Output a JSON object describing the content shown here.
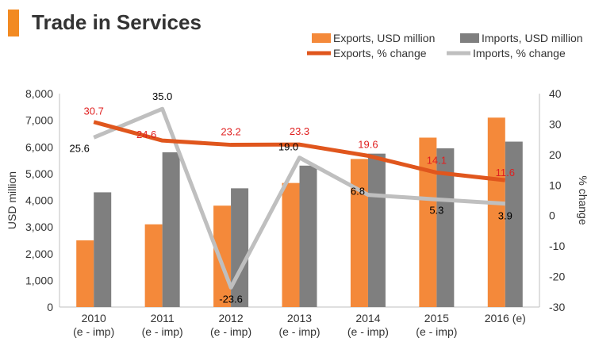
{
  "header": {
    "title": "Trade in Services"
  },
  "colors": {
    "exports": "#f4893a",
    "imports": "#7f7f7f",
    "exports_line": "#e0561d",
    "imports_line": "#bfbfbf",
    "exports_label": "#e02020",
    "imports_label": "#000000",
    "title_accent": "#f28a22"
  },
  "chart_data": {
    "type": "bar",
    "categories": [
      [
        "2010",
        "(e - imp)"
      ],
      [
        "2011",
        "(e - imp)"
      ],
      [
        "2012",
        "(e - imp)"
      ],
      [
        "2013",
        "(e - imp)"
      ],
      [
        "2014",
        "(e - imp)"
      ],
      [
        "2015",
        "(e - imp)"
      ],
      [
        "2016 (e)",
        ""
      ]
    ],
    "series": [
      {
        "name": "Exports, USD million",
        "kind": "bar",
        "axis": "left",
        "values": [
          2500,
          3100,
          3800,
          4650,
          5550,
          6350,
          7100
        ]
      },
      {
        "name": "Imports, USD million",
        "kind": "bar",
        "axis": "left",
        "values": [
          4300,
          5800,
          4450,
          5300,
          5750,
          5950,
          6200
        ]
      },
      {
        "name": "Exports, % change",
        "kind": "line",
        "axis": "right",
        "values": [
          30.7,
          24.6,
          23.2,
          23.3,
          19.6,
          14.1,
          11.6
        ]
      },
      {
        "name": "Imports, % change",
        "kind": "line",
        "axis": "right",
        "values": [
          25.6,
          35.0,
          -23.6,
          19.0,
          6.8,
          5.3,
          3.9
        ]
      }
    ],
    "data_labels": {
      "exports_pct": [
        "30.7",
        "24.6",
        "23.2",
        "23.3",
        "19.6",
        "14.1",
        "11.6"
      ],
      "imports_pct": [
        "25.6",
        "35.0",
        "-23.6",
        "19.0",
        "6.8",
        "5.3",
        "3.9"
      ]
    },
    "ylabel": "USD million",
    "y2label": "% change",
    "ylim": [
      0,
      8000
    ],
    "yticks": [
      0,
      1000,
      2000,
      3000,
      4000,
      5000,
      6000,
      7000,
      8000
    ],
    "ytick_labels": [
      "0",
      "1,000",
      "2,000",
      "3,000",
      "4,000",
      "5,000",
      "6,000",
      "7,000",
      "8,000"
    ],
    "y2lim": [
      -30,
      40
    ],
    "y2ticks": [
      -30,
      -20,
      -10,
      0,
      10,
      20,
      30,
      40
    ],
    "y2tick_labels": [
      "-30",
      "-20",
      "-10",
      "0",
      "10",
      "20",
      "30",
      "40"
    ],
    "grid": false,
    "legend_position": "top-right"
  }
}
